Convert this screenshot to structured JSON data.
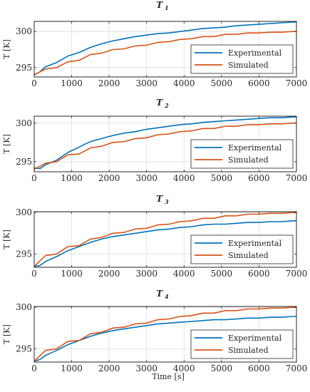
{
  "chart_data": [
    {
      "type": "line",
      "title": "T 1",
      "title_main": "T",
      "title_sub": "1",
      "xlabel": "",
      "ylabel": "T [K]",
      "xlim": [
        0,
        7000
      ],
      "ylim": [
        293.7,
        301.4
      ],
      "xticks": [
        0,
        1000,
        2000,
        3000,
        4000,
        5000,
        6000,
        7000
      ],
      "xtick_labels": [
        "0",
        "1000",
        "2000",
        "3000",
        "4000",
        "5000",
        "6000",
        "7000"
      ],
      "yticks": [
        295,
        300
      ],
      "ytick_labels": [
        "295",
        "300"
      ],
      "grid": true,
      "legend_position": "lower-right",
      "series": [
        {
          "name": "Experimental",
          "color": "#0072BD",
          "x": [
            0,
            150,
            300,
            600,
            900,
            1200,
            1500,
            1800,
            2100,
            2400,
            2700,
            3000,
            3300,
            3600,
            3900,
            4200,
            4500,
            4800,
            5100,
            5400,
            5700,
            6000,
            6300,
            6600,
            6900,
            7000
          ],
          "y": [
            294.0,
            294.4,
            295.1,
            295.7,
            296.6,
            297.1,
            297.8,
            298.3,
            298.7,
            299.0,
            299.3,
            299.5,
            299.7,
            299.8,
            300.0,
            300.2,
            300.4,
            300.5,
            300.6,
            300.8,
            300.9,
            301.0,
            301.1,
            301.2,
            301.3,
            301.3
          ]
        },
        {
          "name": "Simulated",
          "color": "#D95319",
          "x": [
            0,
            300,
            600,
            900,
            1200,
            1500,
            1800,
            2100,
            2400,
            2700,
            3000,
            3300,
            3600,
            3900,
            4200,
            4500,
            4800,
            5100,
            5400,
            5700,
            6000,
            6300,
            6600,
            6900,
            7000
          ],
          "y": [
            294.0,
            294.8,
            295.0,
            295.8,
            296.0,
            296.8,
            297.0,
            297.5,
            297.6,
            298.0,
            298.1,
            298.5,
            298.6,
            298.9,
            299.0,
            299.3,
            299.3,
            299.6,
            299.6,
            299.8,
            299.8,
            299.9,
            299.9,
            300.0,
            300.0
          ]
        }
      ]
    },
    {
      "type": "line",
      "title": "T 2",
      "title_main": "T",
      "title_sub": "2",
      "xlabel": "",
      "ylabel": "T [K]",
      "xlim": [
        0,
        7000
      ],
      "ylim": [
        293.7,
        300.9
      ],
      "xticks": [
        0,
        1000,
        2000,
        3000,
        4000,
        5000,
        6000,
        7000
      ],
      "xtick_labels": [
        "0",
        "1000",
        "2000",
        "3000",
        "4000",
        "5000",
        "6000",
        "7000"
      ],
      "yticks": [
        295,
        300
      ],
      "ytick_labels": [
        "295",
        "300"
      ],
      "grid": true,
      "legend_position": "lower-right",
      "series": [
        {
          "name": "Experimental",
          "color": "#0072BD",
          "x": [
            0,
            150,
            300,
            600,
            900,
            1200,
            1500,
            1800,
            2100,
            2400,
            2700,
            3000,
            3300,
            3600,
            3900,
            4200,
            4500,
            4800,
            5100,
            5400,
            5700,
            6000,
            6300,
            6600,
            6900,
            7000
          ],
          "y": [
            294.2,
            294.1,
            294.6,
            295.2,
            296.2,
            296.9,
            297.6,
            298.0,
            298.4,
            298.7,
            298.9,
            299.2,
            299.4,
            299.6,
            299.8,
            299.9,
            300.1,
            300.2,
            300.3,
            300.4,
            300.5,
            300.6,
            300.7,
            300.7,
            300.8,
            300.8
          ]
        },
        {
          "name": "Simulated",
          "color": "#D95319",
          "x": [
            0,
            300,
            600,
            900,
            1200,
            1500,
            1800,
            2100,
            2400,
            2700,
            3000,
            3300,
            3600,
            3900,
            4200,
            4500,
            4800,
            5100,
            5400,
            5700,
            6000,
            6300,
            6600,
            6900,
            7000
          ],
          "y": [
            294.0,
            294.8,
            295.0,
            295.9,
            296.0,
            296.8,
            297.0,
            297.5,
            297.6,
            298.0,
            298.1,
            298.5,
            298.6,
            298.9,
            299.0,
            299.3,
            299.3,
            299.6,
            299.6,
            299.8,
            299.8,
            299.9,
            299.9,
            300.0,
            300.0
          ]
        }
      ]
    },
    {
      "type": "line",
      "title": "T 3",
      "title_main": "T",
      "title_sub": "3",
      "xlabel": "",
      "ylabel": "T [K]",
      "xlim": [
        0,
        7000
      ],
      "ylim": [
        293.4,
        300.1
      ],
      "xticks": [
        0,
        1000,
        2000,
        3000,
        4000,
        5000,
        6000,
        7000
      ],
      "xtick_labels": [
        "0",
        "1000",
        "2000",
        "3000",
        "4000",
        "5000",
        "6000",
        "7000"
      ],
      "yticks": [
        295,
        300
      ],
      "ytick_labels": [
        "295",
        "300"
      ],
      "grid": true,
      "legend_position": "lower-right",
      "series": [
        {
          "name": "Experimental",
          "color": "#0072BD",
          "x": [
            0,
            150,
            300,
            600,
            900,
            1200,
            1500,
            1800,
            2100,
            2400,
            2700,
            3000,
            3300,
            3600,
            3900,
            4200,
            4500,
            4800,
            5100,
            5400,
            5700,
            6000,
            6300,
            6600,
            6900,
            7000
          ],
          "y": [
            293.5,
            293.6,
            294.1,
            294.7,
            295.4,
            295.9,
            296.4,
            296.8,
            297.1,
            297.3,
            297.5,
            297.7,
            297.9,
            298.0,
            298.2,
            298.3,
            298.5,
            298.6,
            298.6,
            298.7,
            298.8,
            298.8,
            298.9,
            298.9,
            299.0,
            299.0
          ]
        },
        {
          "name": "Simulated",
          "color": "#D95319",
          "x": [
            0,
            300,
            600,
            900,
            1200,
            1500,
            1800,
            2100,
            2400,
            2700,
            3000,
            3300,
            3600,
            3900,
            4200,
            4500,
            4800,
            5100,
            5400,
            5700,
            6000,
            6300,
            6600,
            6900,
            7000
          ],
          "y": [
            293.5,
            294.8,
            295.0,
            295.9,
            296.0,
            296.8,
            297.0,
            297.5,
            297.6,
            298.0,
            298.1,
            298.5,
            298.6,
            298.9,
            299.0,
            299.3,
            299.3,
            299.6,
            299.6,
            299.8,
            299.8,
            299.9,
            299.9,
            300.0,
            300.0
          ]
        }
      ]
    },
    {
      "type": "line",
      "title": "T 4",
      "title_main": "T",
      "title_sub": "4",
      "xlabel": "Time [s]",
      "ylabel": "T [K]",
      "xlim": [
        0,
        7000
      ],
      "ylim": [
        293.4,
        300.1
      ],
      "xticks": [
        0,
        1000,
        2000,
        3000,
        4000,
        5000,
        6000,
        7000
      ],
      "xtick_labels": [
        "0",
        "1000",
        "2000",
        "3000",
        "4000",
        "5000",
        "6000",
        "7000"
      ],
      "yticks": [
        295,
        300
      ],
      "ytick_labels": [
        "295",
        "300"
      ],
      "grid": true,
      "legend_position": "lower-right",
      "series": [
        {
          "name": "Experimental",
          "color": "#0072BD",
          "x": [
            0,
            150,
            300,
            600,
            900,
            1200,
            1500,
            1800,
            2100,
            2400,
            2700,
            3000,
            3300,
            3600,
            3900,
            4200,
            4500,
            4800,
            5100,
            5400,
            5700,
            6000,
            6300,
            6600,
            6900,
            7000
          ],
          "y": [
            293.5,
            293.7,
            294.2,
            294.8,
            295.5,
            296.0,
            296.5,
            296.9,
            297.2,
            297.4,
            297.6,
            297.8,
            298.0,
            298.1,
            298.2,
            298.3,
            298.4,
            298.5,
            298.5,
            298.6,
            298.7,
            298.7,
            298.8,
            298.8,
            298.9,
            298.9
          ]
        },
        {
          "name": "Simulated",
          "color": "#D95319",
          "x": [
            0,
            300,
            600,
            900,
            1200,
            1500,
            1800,
            2100,
            2400,
            2700,
            3000,
            3300,
            3600,
            3900,
            4200,
            4500,
            4800,
            5100,
            5400,
            5700,
            6000,
            6300,
            6600,
            6900,
            7000
          ],
          "y": [
            293.5,
            294.8,
            295.0,
            295.9,
            296.0,
            296.8,
            297.0,
            297.5,
            297.6,
            298.0,
            298.1,
            298.5,
            298.6,
            298.9,
            299.0,
            299.3,
            299.3,
            299.6,
            299.6,
            299.8,
            299.8,
            299.9,
            299.9,
            300.0,
            300.0
          ]
        }
      ]
    }
  ]
}
